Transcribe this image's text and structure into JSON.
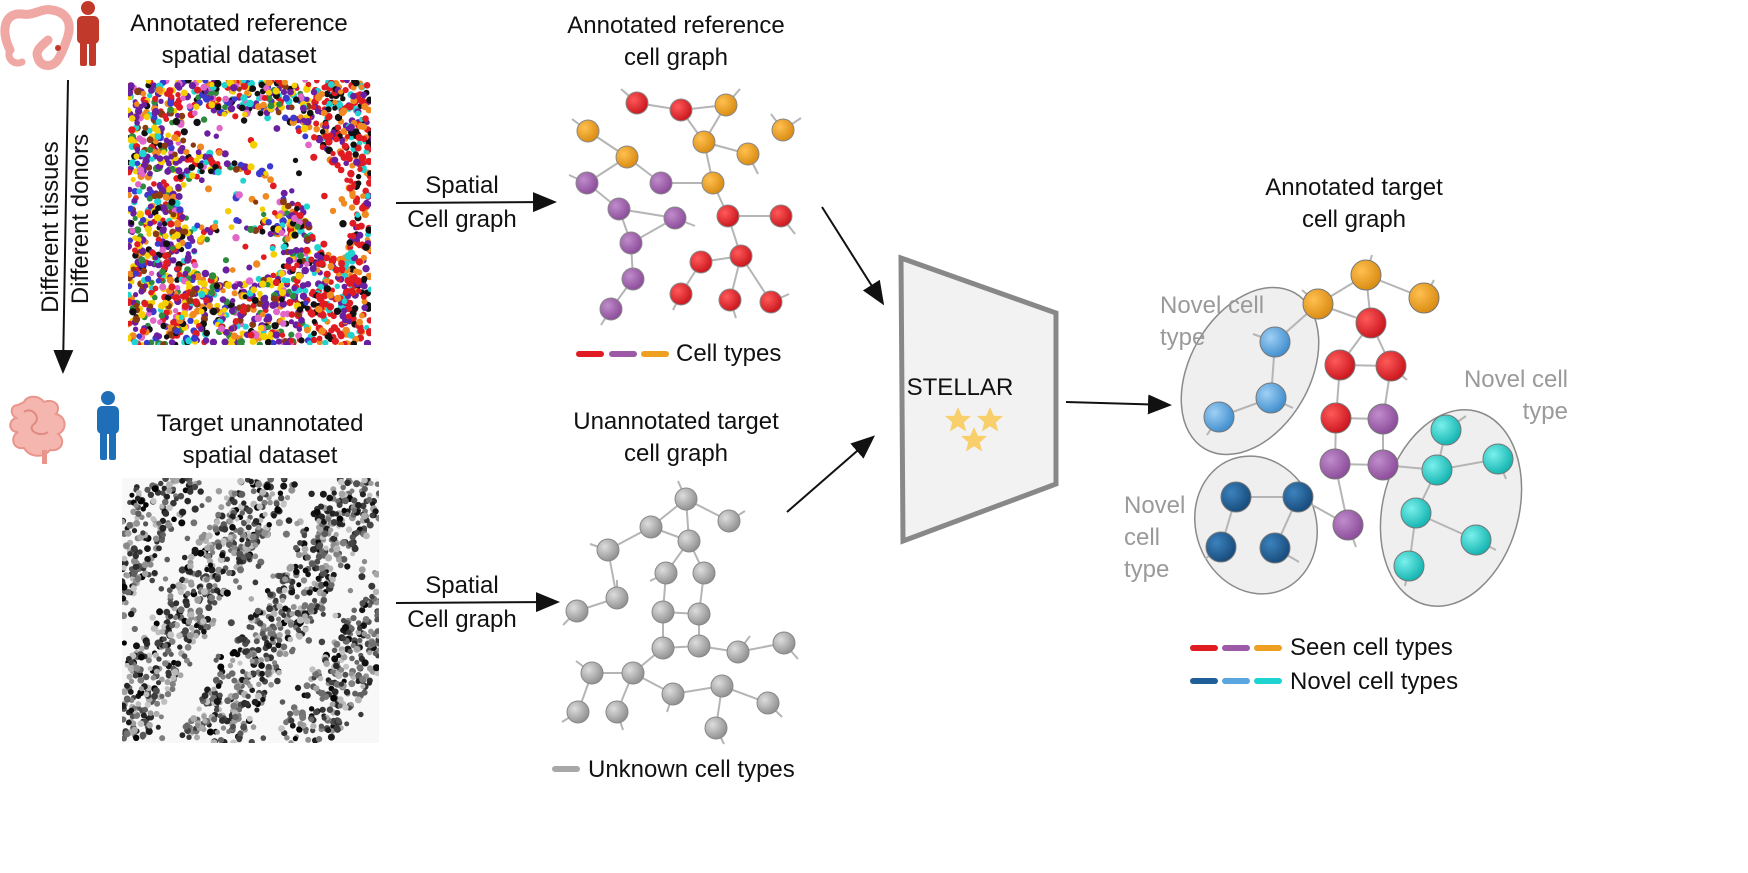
{
  "reference": {
    "title_line1": "Annotated  reference",
    "title_line2": "spatial dataset",
    "graph_title_line1": "Annotated reference",
    "graph_title_line2": "cell graph",
    "legend_label": "Cell types",
    "arrow_label_line1": "Spatial",
    "arrow_label_line2": "Cell graph"
  },
  "side_labels": {
    "tissues": "Different tissues",
    "donors": "Different donors"
  },
  "target": {
    "title_line1": "Target unannotated",
    "title_line2": "spatial dataset",
    "graph_title_line1": "Unannotated target",
    "graph_title_line2": "cell graph",
    "legend_label": "Unknown cell types",
    "arrow_label_line1": "Spatial",
    "arrow_label_line2": "Cell graph"
  },
  "model": {
    "name": "STELLAR"
  },
  "output": {
    "title_line1": "Annotated target",
    "title_line2": "cell graph",
    "novel_1_line1": "Novel cell",
    "novel_1_line2": "type",
    "novel_2_line1": "Novel cell",
    "novel_2_line2": "type",
    "novel_3_line1": "Novel",
    "novel_3_line2": "cell",
    "novel_3_line3": "type",
    "legend_seen": "Seen cell types",
    "legend_novel": "Novel cell types"
  },
  "colors": {
    "red": "#e01b22",
    "purple": "#9b59a8",
    "orange": "#f0a020",
    "gray": "#a8a8a8",
    "dark_blue": "#1f5e96",
    "light_blue": "#5aa6e0",
    "cyan": "#1fd4d0",
    "accent_star": "#f8cf6a",
    "edge": "#b5b5b5"
  }
}
